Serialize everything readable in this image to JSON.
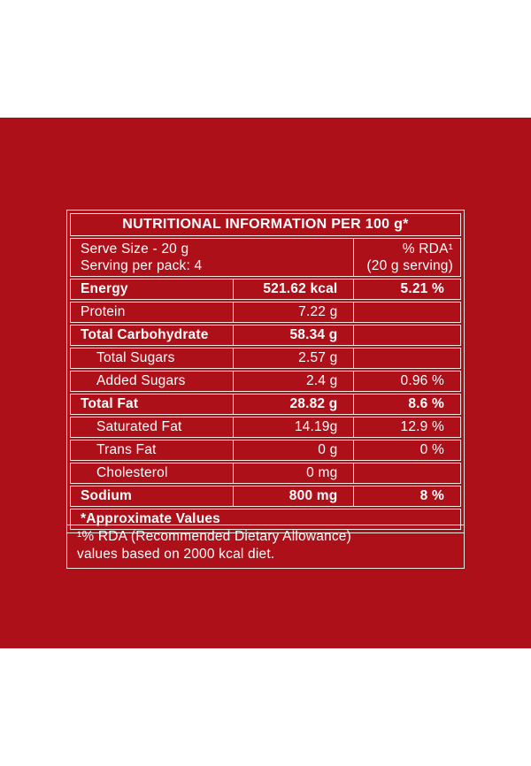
{
  "colors": {
    "panel_red": "#AE1019",
    "border_line": "#F3E9E2",
    "text": "#FFFFFF",
    "page_background": "#FFFFFF"
  },
  "table": {
    "title": "NUTRITIONAL INFORMATION PER 100 g*",
    "serve_size": "Serve Size - 20 g",
    "serving_per_pack": "Serving per pack: 4",
    "rda_header_line1": "% RDA¹",
    "rda_header_line2": "(20 g serving)",
    "rows": [
      {
        "label": "Energy",
        "amount": "521.62 kcal",
        "rda": "5.21 %"
      },
      {
        "label": "Protein",
        "amount": "7.22 g",
        "rda": ""
      },
      {
        "label": "Total Carbohydrate",
        "amount": "58.34 g",
        "rda": ""
      },
      {
        "label": "Total Sugars",
        "amount": "2.57 g",
        "rda": ""
      },
      {
        "label": "Added Sugars",
        "amount": "2.4 g",
        "rda": "0.96 %"
      },
      {
        "label": "Total Fat",
        "amount": "28.82 g",
        "rda": "8.6 %"
      },
      {
        "label": "Saturated Fat",
        "amount": "14.19g",
        "rda": "12.9 %"
      },
      {
        "label": "Trans Fat",
        "amount": "0 g",
        "rda": "0 %"
      },
      {
        "label": "Cholesterol",
        "amount": "0 mg",
        "rda": ""
      },
      {
        "label": "Sodium",
        "amount": "800 mg",
        "rda": "8 %"
      }
    ],
    "approx_note": "*Approximate Values"
  },
  "footnote": {
    "line1": "¹% RDA (Recommended Dietary Allowance)",
    "line2": "values based on 2000 kcal diet."
  }
}
